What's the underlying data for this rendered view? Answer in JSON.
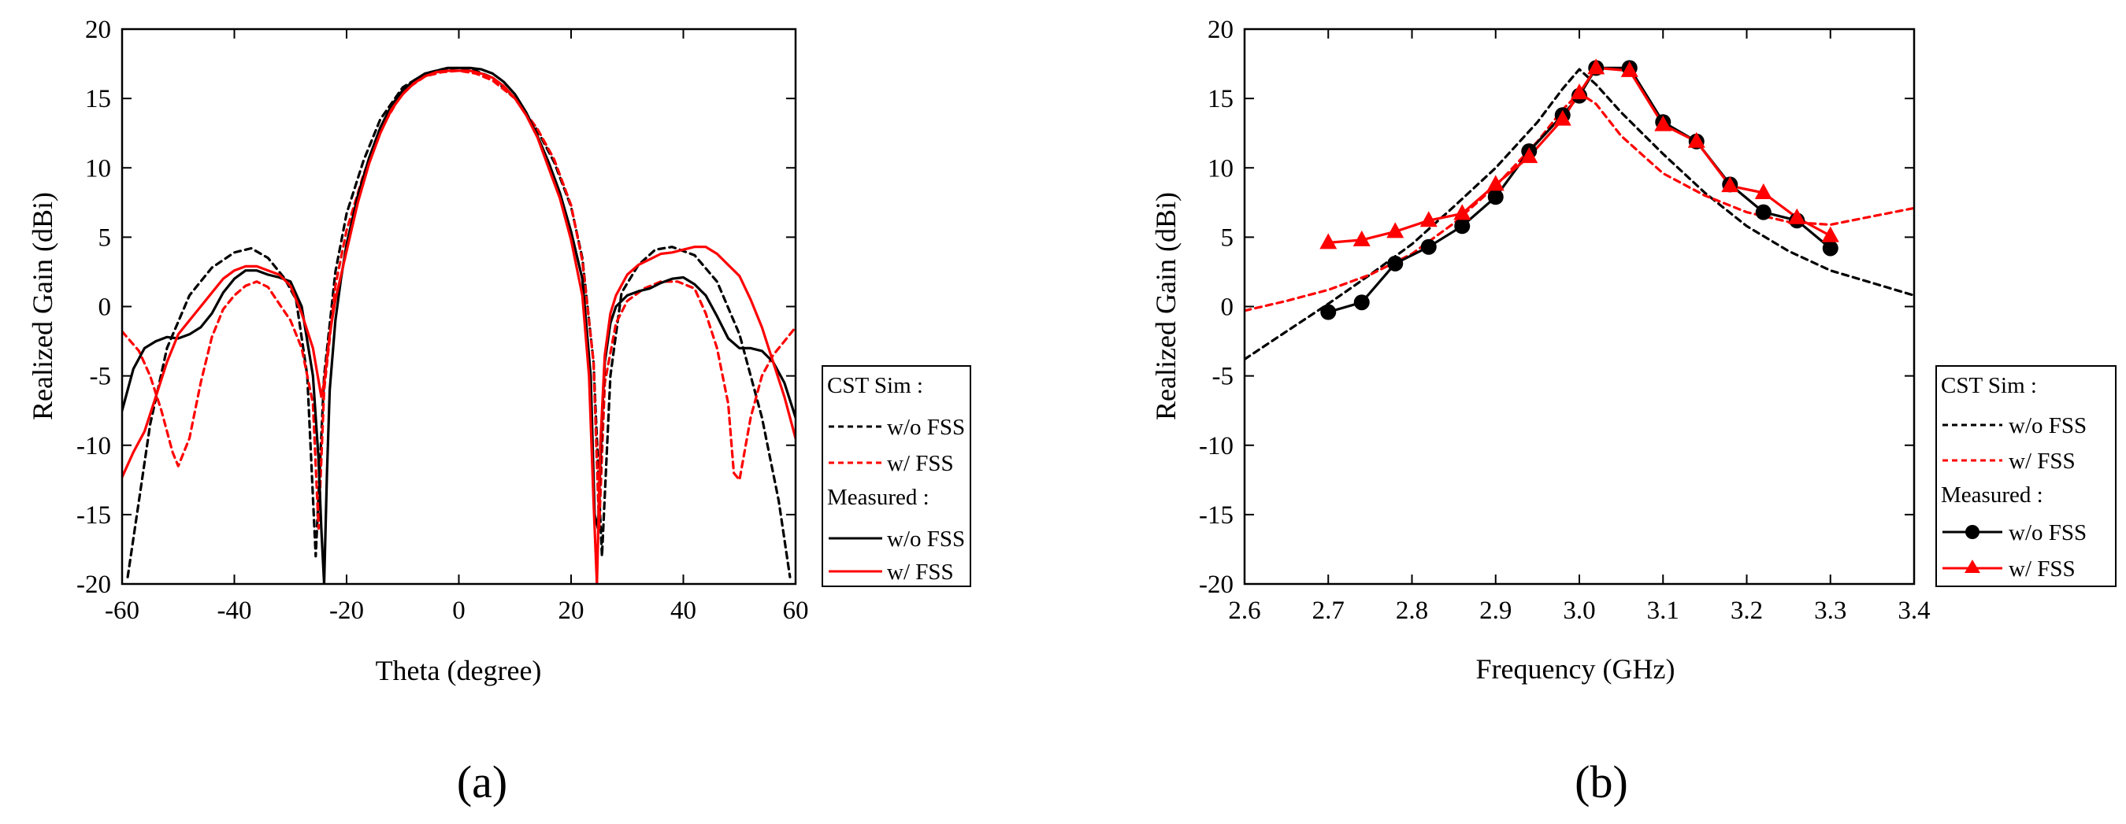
{
  "chart_data": [
    {
      "type": "line",
      "panel_label": "(a)",
      "xlabel": "Theta (degree)",
      "ylabel": "Realized Gain (dBi)",
      "xlim": [
        -60,
        60
      ],
      "ylim": [
        -20,
        20
      ],
      "xticks": [
        -60,
        -40,
        -20,
        0,
        20,
        40,
        60
      ],
      "yticks": [
        -20,
        -15,
        -10,
        -5,
        0,
        5,
        10,
        15,
        20
      ],
      "xtick_labels": [
        "-60",
        "-40",
        "-20",
        "0",
        "20",
        "40",
        "60"
      ],
      "ytick_labels": [
        "-20",
        "-15",
        "-10",
        "-5",
        "0",
        "5",
        "10",
        "15",
        "20"
      ],
      "legend": {
        "location": "right-outside-bottom",
        "group_sim": "CST Sim  :",
        "group_meas": "Measured :",
        "entries": [
          "w/o FSS",
          "w/ FSS",
          "w/o FSS",
          "w/ FSS"
        ]
      },
      "series": [
        {
          "name": "CST Sim w/o FSS",
          "group": "sim",
          "color": "#000000",
          "dashed": true,
          "marker": null,
          "x": [
            -59,
            -57,
            -55,
            -52,
            -48,
            -44,
            -40,
            -37,
            -34,
            -31,
            -29,
            -27,
            -25.5,
            -24,
            -22,
            -20,
            -17,
            -14,
            -10,
            -6,
            -3,
            0,
            3,
            6,
            10,
            14,
            17,
            20,
            22,
            24,
            25.5,
            27,
            29,
            32,
            35,
            38,
            42,
            46,
            50,
            54,
            57,
            59
          ],
          "y": [
            -19.5,
            -14,
            -8.5,
            -3,
            0.8,
            2.8,
            3.9,
            4.2,
            3.5,
            2,
            0.5,
            -5,
            -18,
            -5,
            2.5,
            6.7,
            10.5,
            13.5,
            15.8,
            16.8,
            17.1,
            17.2,
            17,
            16.5,
            15,
            12.7,
            10.4,
            7.2,
            3.5,
            -4,
            -18,
            -5,
            1,
            3,
            4.1,
            4.3,
            3.7,
            1.8,
            -2,
            -8,
            -14,
            -19.5
          ]
        },
        {
          "name": "CST Sim w/ FSS",
          "group": "sim",
          "color": "#ff0000",
          "dashed": true,
          "marker": null,
          "x": [
            -60,
            -57,
            -55,
            -53,
            -51,
            -50,
            -48,
            -46,
            -44,
            -42,
            -40,
            -38,
            -36,
            -34,
            -32,
            -30,
            -28,
            -26,
            -25,
            -24,
            -22,
            -20,
            -17,
            -14,
            -10,
            -6,
            -3,
            0,
            3,
            6,
            10,
            14,
            17,
            20,
            22,
            24,
            25,
            26,
            28,
            30,
            33,
            36,
            39,
            42,
            44,
            46,
            48,
            49,
            50,
            52,
            54,
            56,
            58,
            60
          ],
          "y": [
            -1.8,
            -3.2,
            -5,
            -7.5,
            -10.5,
            -11.5,
            -9.5,
            -5.5,
            -2.2,
            -0.2,
            0.8,
            1.5,
            1.8,
            1.4,
            0.2,
            -1,
            -3,
            -7,
            -16,
            -6,
            1.5,
            5.5,
            9.5,
            12.7,
            15.5,
            16.6,
            16.9,
            17,
            16.8,
            16.3,
            15,
            12.8,
            10.6,
            7.3,
            3.3,
            -4,
            -16,
            -5.5,
            -1.2,
            0.4,
            1.3,
            1.8,
            1.8,
            1.3,
            -0.5,
            -3,
            -7,
            -12,
            -12.5,
            -8,
            -5,
            -3.5,
            -2.5,
            -1.5
          ]
        },
        {
          "name": "Measured w/o FSS",
          "group": "meas",
          "color": "#000000",
          "dashed": false,
          "marker": null,
          "x": [
            -60,
            -58,
            -56,
            -54,
            -52,
            -50,
            -48,
            -46,
            -44,
            -42,
            -40,
            -38,
            -36,
            -34,
            -32,
            -30,
            -28,
            -26,
            -25,
            -24.5,
            -24,
            -23.5,
            -23,
            -22,
            -21,
            -20,
            -18,
            -16,
            -14,
            -12,
            -10,
            -8,
            -6,
            -4,
            -2,
            0,
            2,
            4,
            6,
            8,
            10,
            12,
            14,
            16,
            18,
            20,
            22,
            23.5,
            24.2,
            24.8,
            25.5,
            26,
            27,
            28,
            30,
            32,
            34,
            36,
            38,
            40,
            42,
            44,
            46,
            48,
            50,
            52,
            54,
            56,
            58,
            60
          ],
          "y": [
            -7.5,
            -4.5,
            -3,
            -2.5,
            -2.2,
            -2.3,
            -2,
            -1.5,
            -0.5,
            1,
            2,
            2.6,
            2.6,
            2.3,
            2.1,
            1.8,
            0,
            -5,
            -11,
            -16,
            -20,
            -12,
            -6,
            -1,
            2,
            4.5,
            8,
            10.7,
            12.9,
            14.5,
            15.6,
            16.3,
            16.8,
            17,
            17.2,
            17.2,
            17.2,
            17.1,
            16.8,
            16.2,
            15.3,
            14,
            12.3,
            10.4,
            8.2,
            5.4,
            2,
            -5,
            -15,
            -16,
            -8,
            -4,
            -1.2,
            0,
            0.8,
            1.1,
            1.3,
            1.7,
            2,
            2.1,
            1.6,
            0.8,
            -0.7,
            -2.3,
            -3,
            -3,
            -3.2,
            -4,
            -5.5,
            -8
          ]
        },
        {
          "name": "Measured w/ FSS",
          "group": "meas",
          "color": "#ff0000",
          "dashed": false,
          "marker": null,
          "x": [
            -60,
            -58,
            -56,
            -54,
            -52,
            -50,
            -48,
            -46,
            -44,
            -42,
            -40,
            -38,
            -36,
            -34,
            -32,
            -30,
            -28,
            -26,
            -24.5,
            -24,
            -23,
            -22,
            -20,
            -18,
            -16,
            -14,
            -12,
            -10,
            -8,
            -6,
            -4,
            -2,
            0,
            2,
            4,
            6,
            8,
            10,
            12,
            14,
            16,
            18,
            20,
            22,
            23.2,
            24,
            24.6,
            25.2,
            26,
            27,
            28,
            30,
            32,
            34,
            36,
            38,
            40,
            42,
            44,
            46,
            48,
            50,
            52,
            54,
            56,
            58,
            60
          ],
          "y": [
            -12.3,
            -10.5,
            -9,
            -6.5,
            -4,
            -2,
            -1,
            0,
            1,
            2,
            2.6,
            2.9,
            2.9,
            2.6,
            2.3,
            1.5,
            -0.5,
            -3,
            -6.5,
            -5.5,
            -2,
            0.5,
            4,
            7.5,
            10.3,
            12.5,
            14.2,
            15.3,
            16.1,
            16.6,
            16.9,
            17,
            17,
            17,
            16.8,
            16.5,
            15.9,
            15,
            13.8,
            12.2,
            10,
            7.8,
            4.8,
            0.8,
            -5,
            -14,
            -20,
            -10,
            -3.5,
            -0.5,
            0.8,
            2.3,
            3,
            3.4,
            3.8,
            3.9,
            4.1,
            4.3,
            4.3,
            3.8,
            3,
            2.2,
            0.5,
            -1.5,
            -4,
            -6.5,
            -9.5
          ]
        }
      ]
    },
    {
      "type": "line",
      "panel_label": "(b)",
      "xlabel": "Frequency (GHz)",
      "ylabel": "Realized Gain (dBi)",
      "xlim": [
        2.6,
        3.4
      ],
      "ylim": [
        -20,
        20
      ],
      "xticks": [
        2.6,
        2.7,
        2.8,
        2.9,
        3.0,
        3.1,
        3.2,
        3.3,
        3.4
      ],
      "yticks": [
        -20,
        -15,
        -10,
        -5,
        0,
        5,
        10,
        15,
        20
      ],
      "xtick_labels": [
        "2.6",
        "2.7",
        "2.8",
        "2.9",
        "3.0",
        "3.1",
        "3.2",
        "3.3",
        "3.4"
      ],
      "ytick_labels": [
        "-20",
        "-15",
        "-10",
        "-5",
        "0",
        "5",
        "10",
        "15",
        "20"
      ],
      "legend": {
        "location": "right-outside-bottom",
        "group_sim": "CST Sim  :",
        "group_meas": "Measured :",
        "entries": [
          "w/o FSS",
          "w/ FSS",
          "w/o FSS",
          "w/ FSS"
        ]
      },
      "series": [
        {
          "name": "CST Sim w/o FSS",
          "group": "sim",
          "color": "#000000",
          "dashed": true,
          "marker": null,
          "x": [
            2.6,
            2.65,
            2.7,
            2.75,
            2.8,
            2.85,
            2.9,
            2.95,
            2.98,
            3.0,
            3.02,
            3.05,
            3.1,
            3.15,
            3.2,
            3.25,
            3.3,
            3.35,
            3.4
          ],
          "y": [
            -3.8,
            -1.8,
            0.2,
            2.3,
            4.5,
            7.2,
            10,
            13.3,
            15.7,
            17.1,
            16,
            14,
            11,
            8.2,
            5.8,
            4,
            2.6,
            1.7,
            0.8
          ]
        },
        {
          "name": "CST Sim w/ FSS",
          "group": "sim",
          "color": "#ff0000",
          "dashed": true,
          "marker": null,
          "x": [
            2.6,
            2.65,
            2.7,
            2.75,
            2.8,
            2.85,
            2.9,
            2.95,
            2.98,
            3.0,
            3.02,
            3.05,
            3.1,
            3.15,
            3.2,
            3.25,
            3.3,
            3.35,
            3.4
          ],
          "y": [
            -0.3,
            0.4,
            1.2,
            2.3,
            3.8,
            6,
            8.7,
            11.9,
            14.2,
            15.4,
            14.6,
            12.3,
            9.6,
            8,
            6.8,
            6.1,
            5.9,
            6.5,
            7.1
          ]
        },
        {
          "name": "Measured w/o FSS",
          "group": "meas",
          "color": "#000000",
          "dashed": false,
          "marker": "circle",
          "x": [
            2.7,
            2.74,
            2.78,
            2.82,
            2.86,
            2.9,
            2.94,
            2.98,
            3.0,
            3.02,
            3.06,
            3.1,
            3.14,
            3.18,
            3.22,
            3.26,
            3.3
          ],
          "y": [
            -0.4,
            0.3,
            3.1,
            4.3,
            5.8,
            7.9,
            11.2,
            13.8,
            15.2,
            17.2,
            17.2,
            13.3,
            11.9,
            8.8,
            6.8,
            6.2,
            4.2
          ]
        },
        {
          "name": "Measured w/ FSS",
          "group": "meas",
          "color": "#ff0000",
          "dashed": false,
          "marker": "triangle",
          "x": [
            2.7,
            2.74,
            2.78,
            2.82,
            2.86,
            2.9,
            2.94,
            2.98,
            3.0,
            3.02,
            3.06,
            3.1,
            3.14,
            3.18,
            3.22,
            3.26,
            3.3
          ],
          "y": [
            4.6,
            4.8,
            5.4,
            6.2,
            6.7,
            8.8,
            10.8,
            13.5,
            15.4,
            17.2,
            17,
            13.1,
            11.9,
            8.7,
            8.2,
            6.4,
            5.1
          ]
        }
      ]
    }
  ]
}
